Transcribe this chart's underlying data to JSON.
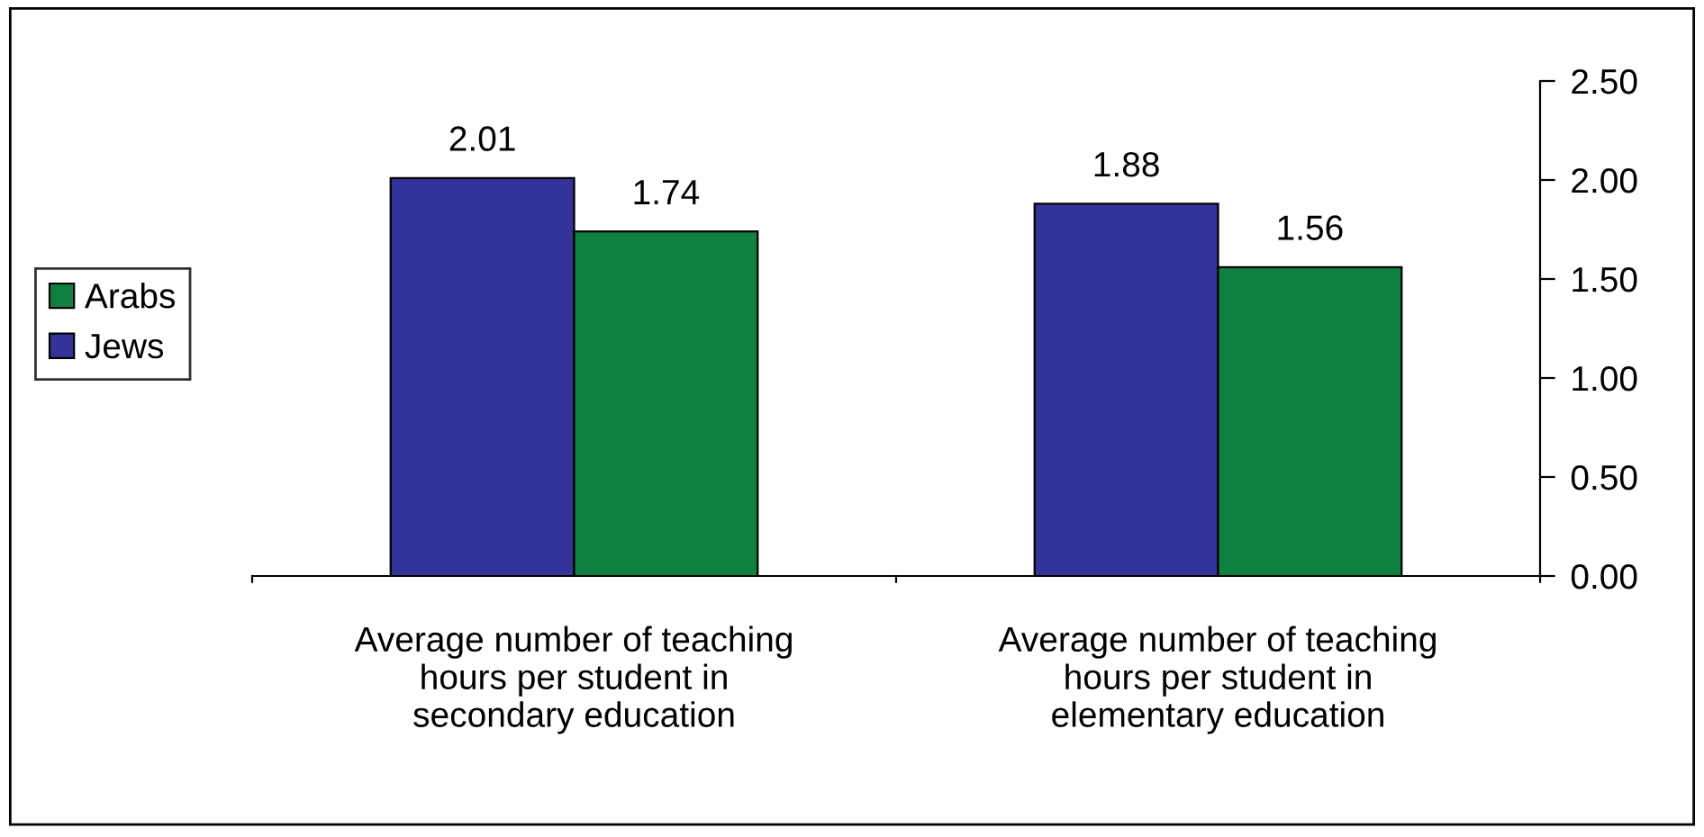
{
  "chart_data": {
    "type": "bar",
    "categories": [
      "Average number of teaching\nhours per student in\nsecondary education",
      "Average number of teaching\nhours per student in\nelementary education"
    ],
    "series": [
      {
        "name": "Jews",
        "color": "#333399",
        "values": [
          2.01,
          1.88
        ]
      },
      {
        "name": "Arabs",
        "color": "#108040",
        "values": [
          1.74,
          1.56
        ]
      }
    ],
    "ylim": [
      0,
      2.5
    ],
    "yticks": [
      {
        "value": 0,
        "label": "0.00"
      },
      {
        "value": 0.5,
        "label": "0.50"
      },
      {
        "value": 1,
        "label": "1.00"
      },
      {
        "value": 1.5,
        "label": "1.50"
      },
      {
        "value": 2,
        "label": "2.00"
      },
      {
        "value": 2.5,
        "label": "2.50"
      }
    ],
    "data_labels": true,
    "legend": "left",
    "grid": false
  }
}
